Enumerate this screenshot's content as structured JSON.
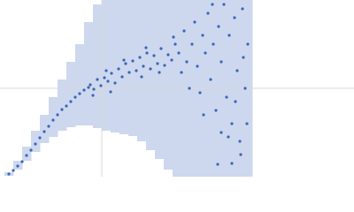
{
  "chart_data": {
    "type": "scatter",
    "xlim": [
      0,
      400
    ],
    "ylim": [
      0,
      200
    ],
    "xticks": [
      115
    ],
    "yticks": [
      100
    ],
    "grid": true,
    "color": "#3b66b8",
    "band_color": "#cdd8ee",
    "band": {
      "x": [
        10,
        20,
        30,
        40,
        50,
        60,
        70,
        80,
        90,
        100,
        110,
        120,
        130,
        140,
        150,
        160,
        170,
        180,
        190,
        200,
        210,
        220,
        230,
        240,
        250,
        260,
        270,
        280
      ],
      "lower": [
        1,
        8,
        18,
        28,
        38,
        45,
        52,
        56,
        58,
        58,
        55,
        52,
        50,
        48,
        46,
        40,
        30,
        20,
        8,
        0,
        0,
        0,
        0,
        0,
        0,
        0,
        0,
        0
      ],
      "upper": [
        5,
        18,
        34,
        52,
        70,
        90,
        110,
        130,
        150,
        175,
        195,
        200,
        200,
        200,
        200,
        200,
        200,
        200,
        200,
        200,
        200,
        200,
        200,
        200,
        200,
        200,
        200,
        200
      ]
    },
    "x": [
      10,
      15,
      20,
      25,
      30,
      35,
      40,
      45,
      50,
      55,
      60,
      65,
      70,
      75,
      80,
      85,
      90,
      95,
      100,
      102,
      106,
      110,
      114,
      118,
      122,
      126,
      130,
      134,
      138,
      142,
      146,
      150,
      154,
      158,
      162,
      166,
      170,
      174,
      178,
      182,
      186,
      190,
      194,
      198,
      105,
      120,
      140,
      160,
      180,
      196,
      125,
      165,
      202,
      205,
      208,
      211,
      214,
      217,
      220,
      223,
      226,
      229,
      232,
      235,
      238,
      241,
      244,
      247,
      250,
      253,
      256,
      259,
      262,
      265,
      268,
      271,
      274,
      277,
      280,
      246,
      262,
      272,
      250,
      258,
      275,
      230,
      240,
      266,
      279
    ],
    "y": [
      3,
      7,
      12,
      17,
      24,
      30,
      37,
      44,
      51,
      57,
      64,
      70,
      76,
      80,
      85,
      90,
      94,
      98,
      101,
      104,
      99,
      110,
      103,
      112,
      108,
      117,
      106,
      122,
      113,
      128,
      118,
      131,
      120,
      135,
      125,
      140,
      122,
      137,
      128,
      145,
      126,
      138,
      132,
      150,
      92,
      120,
      132,
      113,
      118,
      158,
      96,
      146,
      140,
      118,
      165,
      130,
      100,
      150,
      175,
      125,
      95,
      160,
      140,
      185,
      110,
      150,
      75,
      170,
      130,
      195,
      90,
      160,
      60,
      180,
      120,
      40,
      190,
      100,
      150,
      14,
      15,
      25,
      50,
      45,
      135,
      70,
      195,
      85,
      60
    ]
  }
}
